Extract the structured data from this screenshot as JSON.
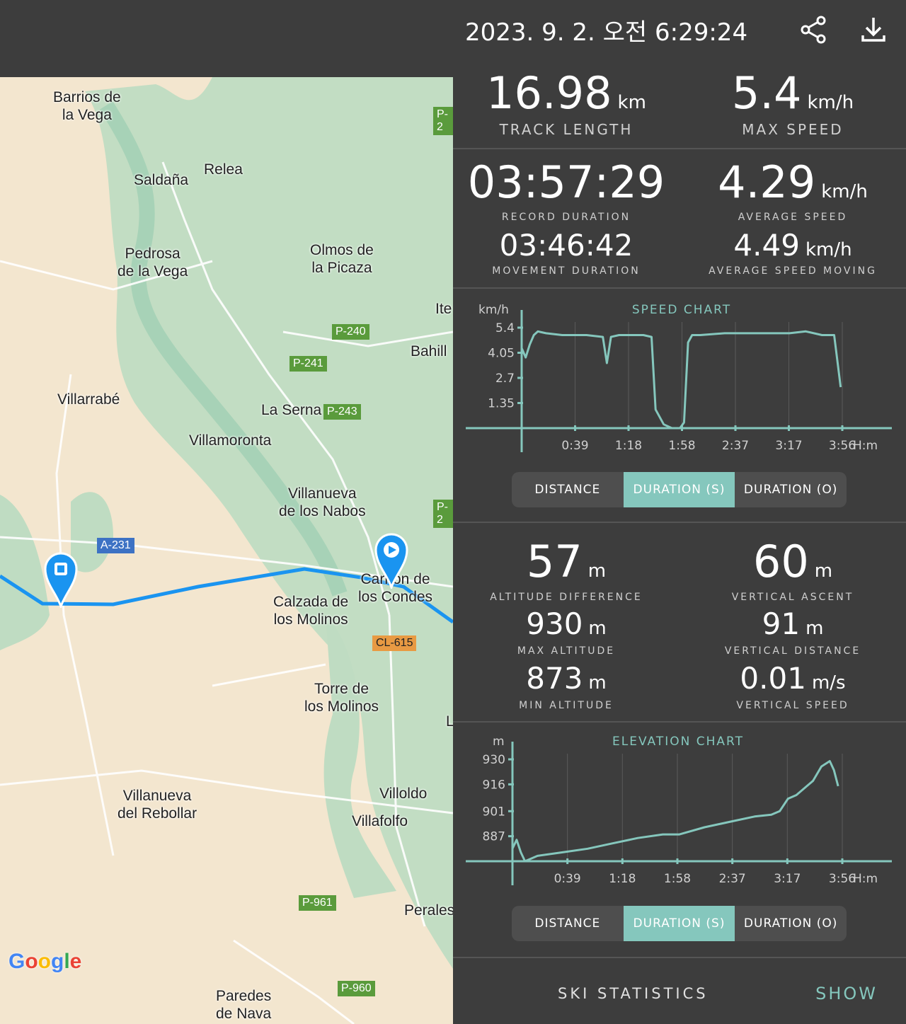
{
  "header": {
    "title": "2023. 9. 2. 오전 6:29:24",
    "share_icon": "share-icon",
    "download_icon": "download-icon"
  },
  "map": {
    "places": [
      "Barrios de\nla Vega",
      "Saldaña",
      "Relea",
      "Pedrosa\nde la Vega",
      "Olmos de\nla Picaza",
      "Ite",
      "Bahill",
      "Villarrabé",
      "La Serna",
      "Villamoronta",
      "Villanueva\nde los Nabos",
      "Carrión de\nlos Condes",
      "Calzada de\nlos Molinos",
      "Torre de\nlos Molinos",
      "Villoldo",
      "Villafolfo",
      "Villanueva\ndel Rebollar",
      "Perales",
      "Paredes\nde Nava",
      "L"
    ],
    "roads": [
      "P-2",
      "P-240",
      "P-241",
      "P-243",
      "P-2",
      "A-231",
      "CL-615",
      "P-961",
      "P-960"
    ],
    "logo": "Google"
  },
  "stats1": {
    "track_length": {
      "value": "16.98",
      "unit": "km",
      "label": "TRACK LENGTH"
    },
    "max_speed": {
      "value": "5.4",
      "unit": "km/h",
      "label": "MAX SPEED"
    },
    "record_duration": {
      "value": "03:57:29",
      "label": "RECORD DURATION"
    },
    "average_speed": {
      "value": "4.29",
      "unit": "km/h",
      "label": "AVERAGE SPEED"
    },
    "movement_duration": {
      "value": "03:46:42",
      "label": "MOVEMENT DURATION"
    },
    "average_speed_moving": {
      "value": "4.49",
      "unit": "km/h",
      "label": "AVERAGE SPEED MOVING"
    }
  },
  "speed_chart": {
    "title": "SPEED CHART",
    "y_unit": "km/h",
    "x_unit": "H:m",
    "y_ticks": [
      "5.4",
      "4.05",
      "2.7",
      "1.35"
    ],
    "x_ticks": [
      "0:39",
      "1:18",
      "1:58",
      "2:37",
      "3:17",
      "3:56"
    ],
    "tabs": [
      "DISTANCE",
      "DURATION (S)",
      "DURATION (O)"
    ],
    "active": 1
  },
  "stats2": {
    "altitude_difference": {
      "value": "57",
      "unit": "m",
      "label": "ALTITUDE DIFFERENCE"
    },
    "vertical_ascent": {
      "value": "60",
      "unit": "m",
      "label": "VERTICAL ASCENT"
    },
    "max_altitude": {
      "value": "930",
      "unit": "m",
      "label": "MAX ALTITUDE"
    },
    "vertical_distance": {
      "value": "91",
      "unit": "m",
      "label": "VERTICAL DISTANCE"
    },
    "min_altitude": {
      "value": "873",
      "unit": "m",
      "label": "MIN ALTITUDE"
    },
    "vertical_speed": {
      "value": "0.01",
      "unit": "m/s",
      "label": "VERTICAL SPEED"
    }
  },
  "elevation_chart": {
    "title": "ELEVATION CHART",
    "y_unit": "m",
    "x_unit": "H:m",
    "y_ticks": [
      "930",
      "916",
      "901",
      "887"
    ],
    "x_ticks": [
      "0:39",
      "1:18",
      "1:58",
      "2:37",
      "3:17",
      "3:56"
    ],
    "tabs": [
      "DISTANCE",
      "DURATION (S)",
      "DURATION (O)"
    ],
    "active": 1
  },
  "ski": {
    "label": "SKI STATISTICS",
    "action": "SHOW"
  },
  "chart_data": [
    {
      "type": "line",
      "title": "SPEED CHART",
      "ylabel": "km/h",
      "xlabel": "H:m",
      "ylim": [
        0,
        5.4
      ],
      "xlim": [
        0,
        3.95
      ],
      "x": [
        0,
        0.05,
        0.1,
        0.15,
        0.2,
        0.3,
        0.5,
        0.8,
        1.0,
        1.05,
        1.1,
        1.2,
        1.5,
        1.6,
        1.65,
        1.75,
        1.85,
        1.95,
        2.0,
        2.05,
        2.1,
        2.2,
        2.5,
        2.8,
        3.1,
        3.3,
        3.5,
        3.7,
        3.85,
        3.93
      ],
      "y": [
        4.3,
        3.8,
        4.5,
        5.0,
        5.2,
        5.1,
        5.0,
        5.0,
        4.9,
        3.5,
        4.9,
        5.0,
        5.0,
        4.9,
        1.0,
        0.2,
        0.0,
        0.0,
        0.3,
        4.6,
        5.0,
        5.0,
        5.1,
        5.1,
        5.1,
        5.1,
        5.2,
        5.0,
        5.0,
        2.2
      ]
    },
    {
      "type": "line",
      "title": "ELEVATION CHART",
      "ylabel": "m",
      "xlabel": "H:m",
      "ylim": [
        873,
        930
      ],
      "xlim": [
        0,
        3.95
      ],
      "x": [
        0,
        0.05,
        0.1,
        0.15,
        0.3,
        0.6,
        0.9,
        1.2,
        1.5,
        1.8,
        2.0,
        2.3,
        2.6,
        2.9,
        3.1,
        3.2,
        3.3,
        3.4,
        3.6,
        3.7,
        3.8,
        3.85,
        3.9
      ],
      "y": [
        880,
        885,
        878,
        873,
        876,
        878,
        880,
        883,
        886,
        888,
        888,
        892,
        895,
        898,
        899,
        901,
        908,
        910,
        918,
        926,
        929,
        924,
        915
      ]
    }
  ]
}
